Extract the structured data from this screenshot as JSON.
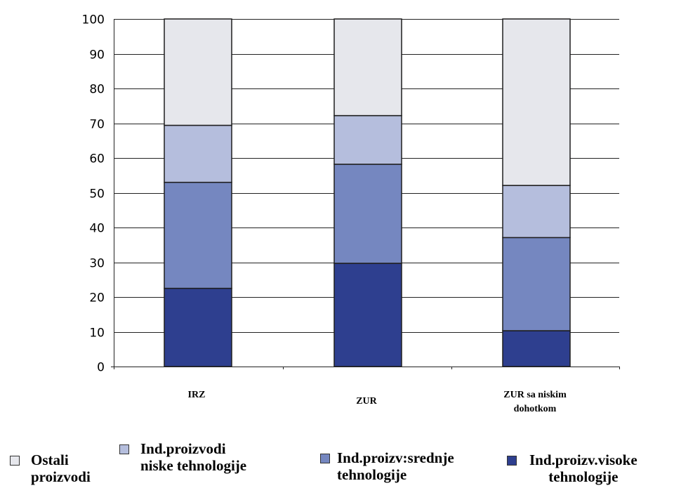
{
  "chart_data": {
    "type": "bar",
    "stacked": true,
    "categories": [
      "IRZ",
      "ZUR",
      "ZUR sa niskim\ndohotkom"
    ],
    "series": [
      {
        "name": "Ind.proizv.visoke\ntehnologije",
        "color": "#2E3F8F",
        "values": [
          22.5,
          29.7,
          10.3
        ]
      },
      {
        "name": "Ind.proizv:srednje\ntehnologije",
        "color": "#7587C0",
        "values": [
          30.5,
          28.5,
          26.8
        ]
      },
      {
        "name": "Ind.proizvodi\nniske tehnologije",
        "color": "#B5BEDD",
        "values": [
          16.4,
          14.0,
          15.0
        ]
      },
      {
        "name": "Ostali\nproizvodi",
        "color": "#E6E7EC",
        "values": [
          30.6,
          27.8,
          47.9
        ]
      }
    ],
    "ylim": [
      0,
      100
    ],
    "yticks": [
      "0",
      "10",
      "20",
      "30",
      "40",
      "50",
      "60",
      "70",
      "80",
      "90",
      "100"
    ],
    "grid": true,
    "legend_position": "bottom",
    "title": "",
    "xlabel": "",
    "ylabel": ""
  },
  "legend": [
    {
      "name": "Ostali\nproizvodi",
      "color": "#E6E7EC"
    },
    {
      "name": "Ind.proizvodi\nniske tehnologije",
      "color": "#B5BEDD"
    },
    {
      "name": "Ind.proizv:srednje\ntehnologije",
      "color": "#7587C0"
    },
    {
      "name": "Ind.proizv.visoke\ntehnologije",
      "color": "#2E3F8F"
    }
  ]
}
